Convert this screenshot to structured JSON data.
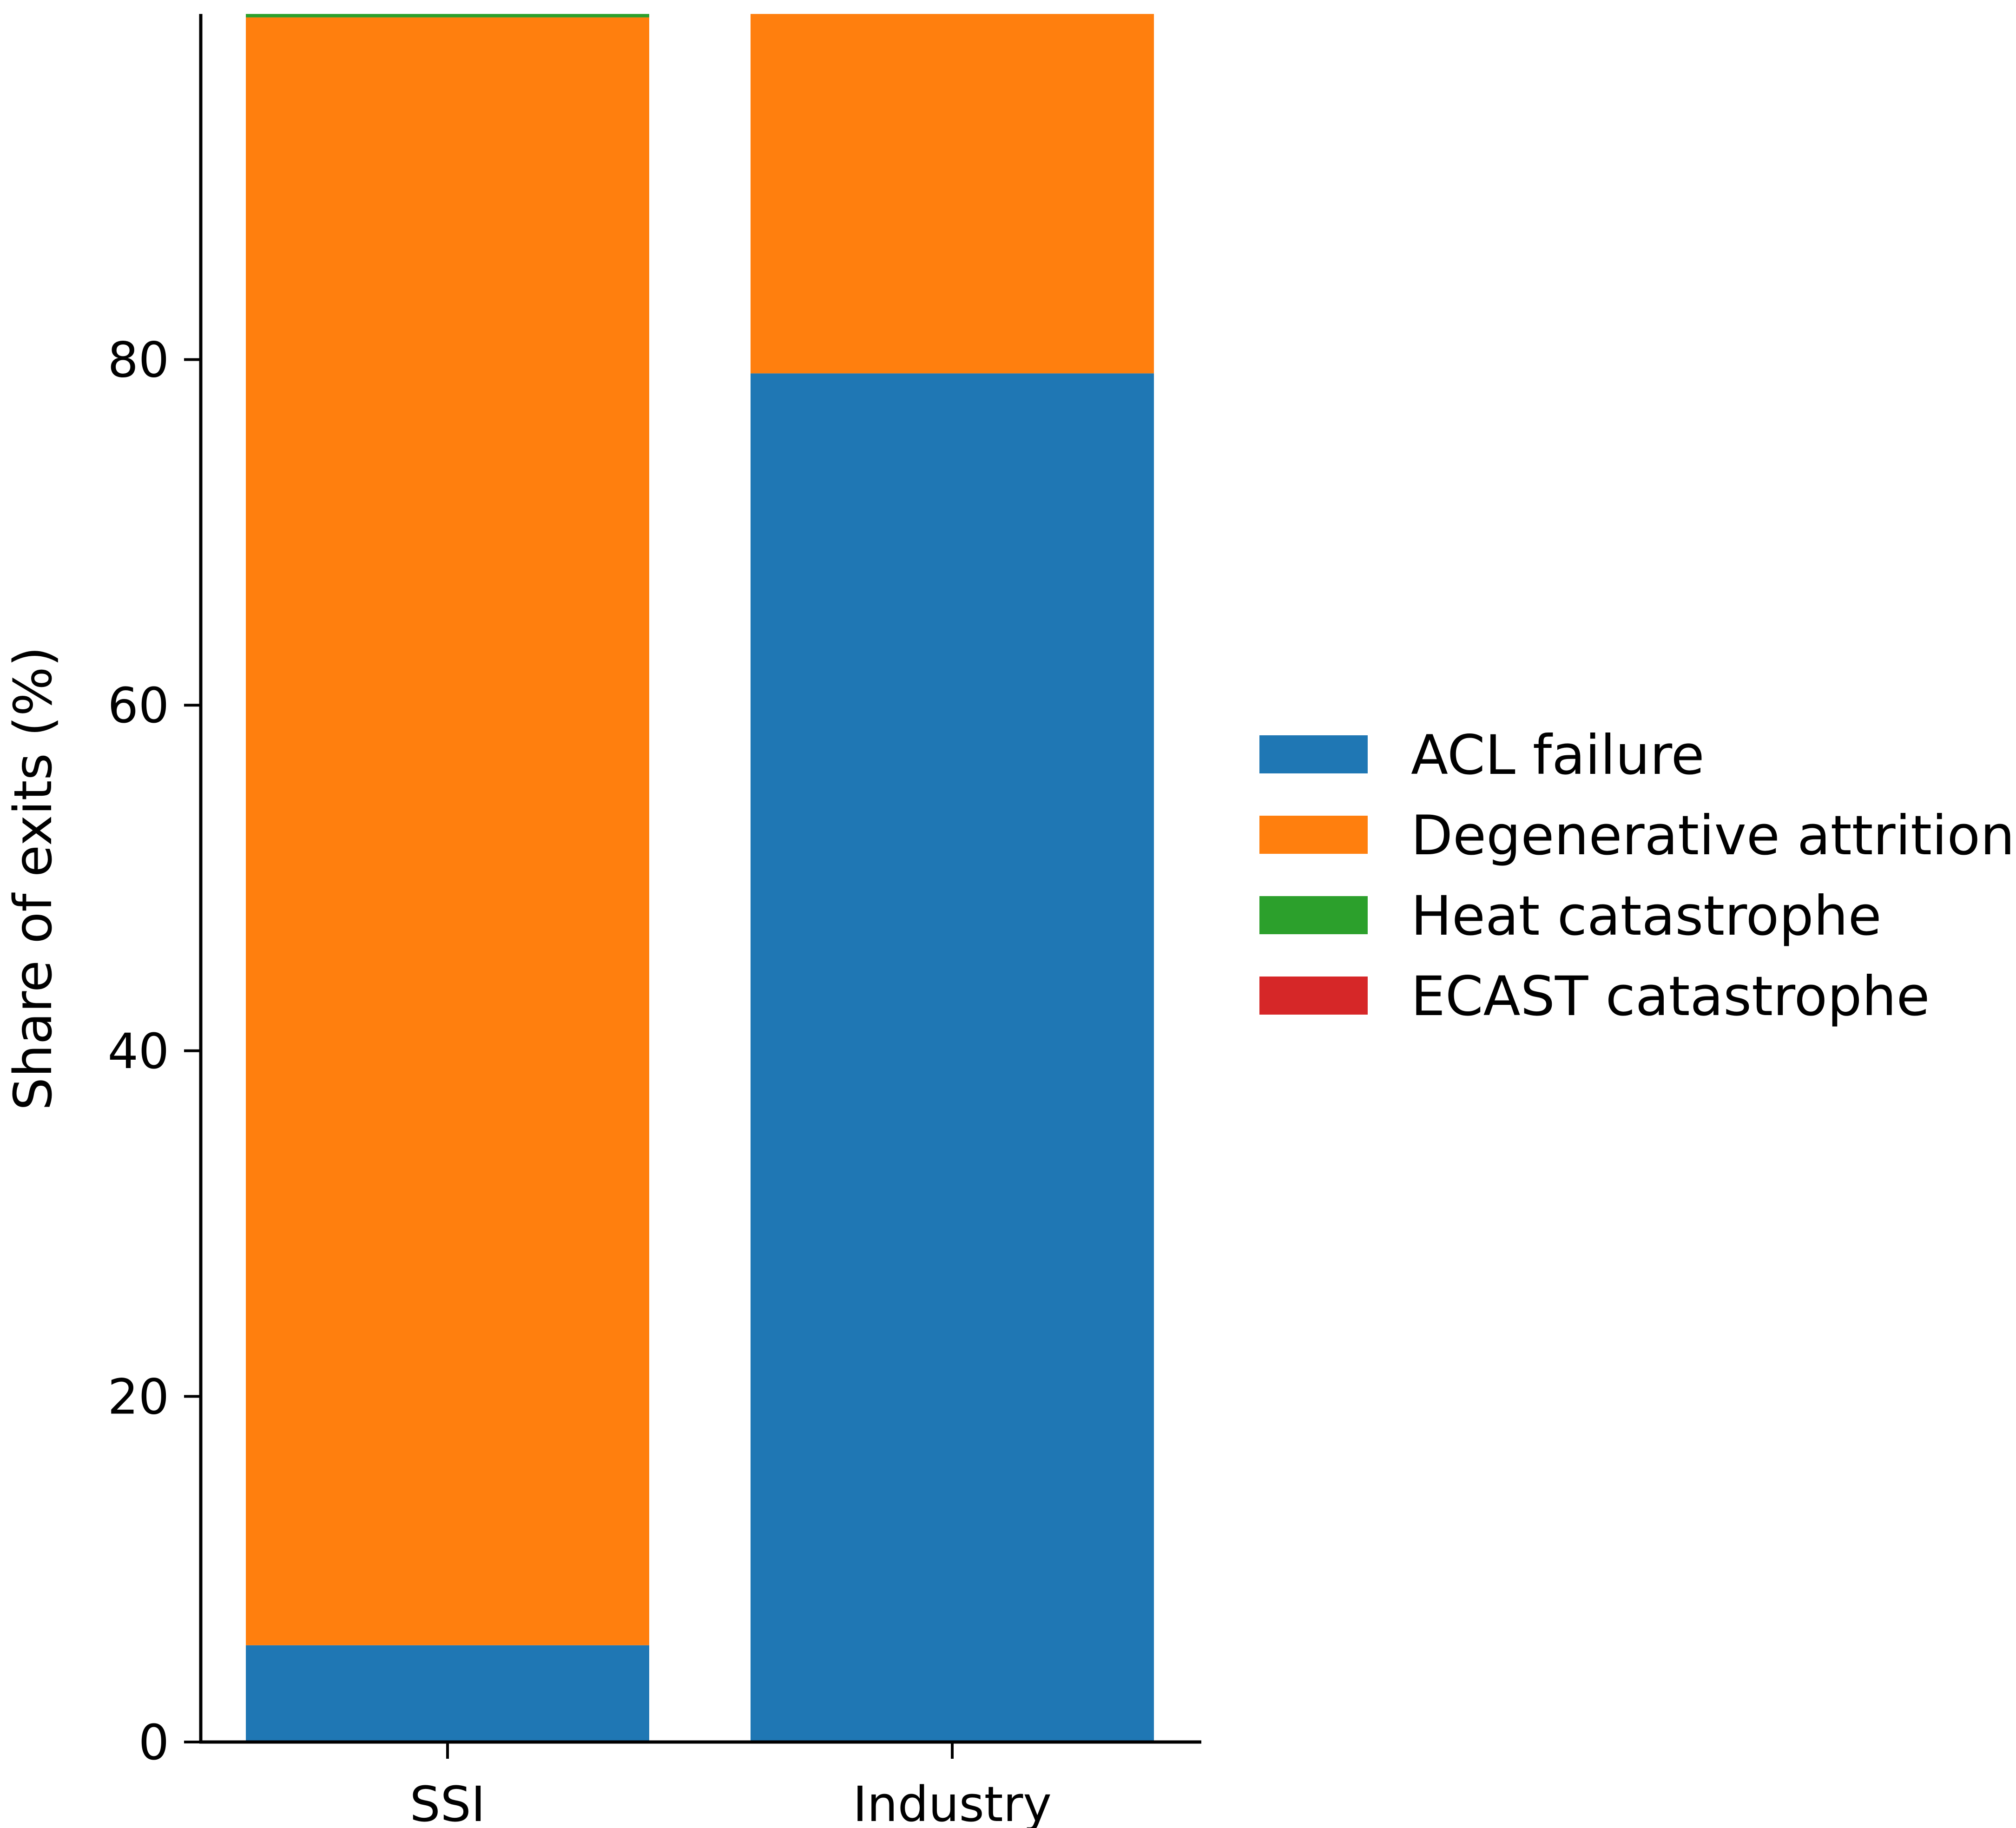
{
  "chart_data": {
    "type": "bar",
    "stacked": true,
    "categories": [
      "SSI",
      "Industry"
    ],
    "series": [
      {
        "name": "ACL failure",
        "color": "#1f77b4",
        "values": [
          5.6,
          79.2
        ]
      },
      {
        "name": "Degenerative attrition",
        "color": "#ff7f0e",
        "values": [
          94.2,
          20.8
        ]
      },
      {
        "name": "Heat catastrophe",
        "color": "#2ca02c",
        "values": [
          0.2,
          0.0
        ]
      },
      {
        "name": "ECAST catastrophe",
        "color": "#d62728",
        "values": [
          0.0,
          0.0
        ]
      }
    ],
    "title": "",
    "xlabel": "",
    "ylabel": "Share of exits (%)",
    "ylim": [
      0,
      100
    ],
    "yticks": [
      0,
      20,
      40,
      60,
      80
    ],
    "grid": false,
    "legend_position": "right"
  }
}
